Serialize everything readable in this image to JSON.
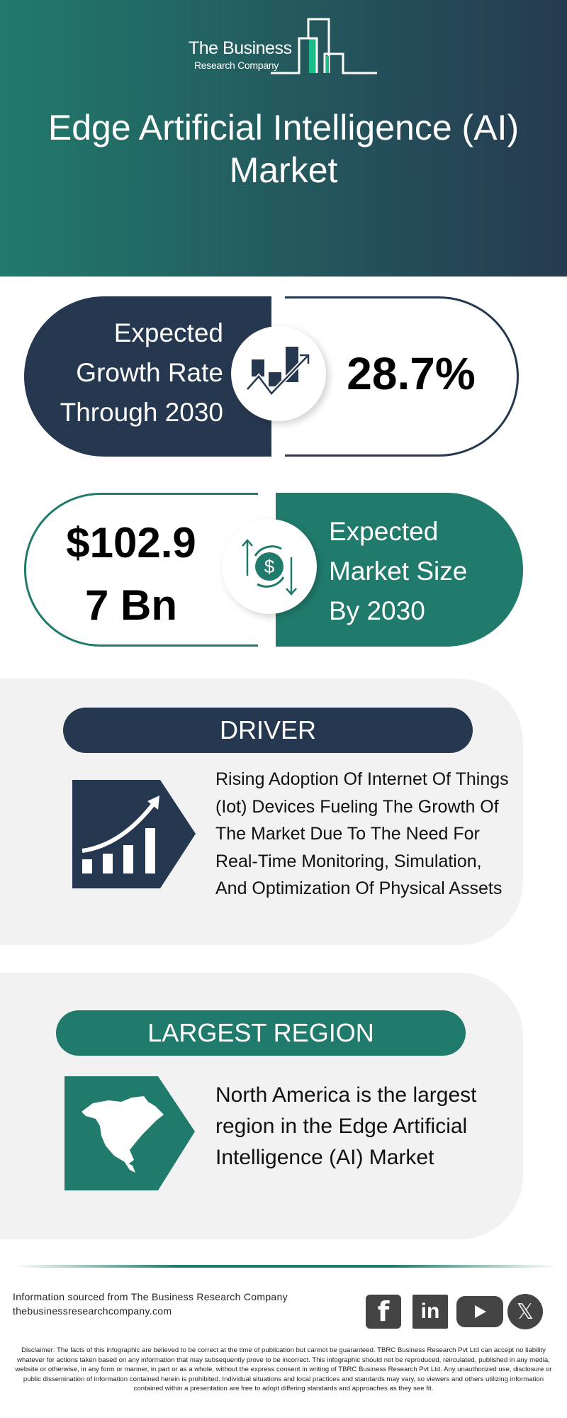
{
  "header": {
    "logo_line1": "The Business",
    "logo_line2": "Research Company",
    "title": "Edge Artificial Intelligence (AI) Market"
  },
  "growth": {
    "label": [
      "Expected",
      "Growth Rate",
      "Through 2030"
    ],
    "value": "28.7%",
    "icon": "growth-chart-icon"
  },
  "market_size": {
    "value": [
      "$102.9",
      "7 Bn"
    ],
    "label": [
      "Expected",
      "Market Size",
      "By 2030"
    ],
    "icon": "dollar-cycle-icon"
  },
  "driver": {
    "heading": "DRIVER",
    "text": "Rising Adoption Of Internet Of Things (Iot) Devices Fueling The Growth Of The Market Due To The Need For Real-Time Monitoring, Simulation, And Optimization Of Physical Assets",
    "icon": "rising-bar-chart-icon"
  },
  "region": {
    "heading": "LARGEST REGION",
    "text": "North America is the largest region in the Edge Artificial Intelligence (AI) Market",
    "icon": "north-america-map-icon"
  },
  "footer": {
    "source": "Information sourced from The Business Research Company",
    "website": "thebusinessresearchcompany.com",
    "social": [
      "facebook",
      "linkedin",
      "youtube",
      "x"
    ],
    "disclaimer": "Disclaimer: The facts of this infographic are believed to be correct at the time of publication but cannot be guaranteed. TBRC Business Research Pvt Ltd can accept no liability whatever for actions taken based on any information that may subsequently prove to be incorrect. This infographic should not be reproduced, reirculated, published in any media, website or otherwise, in any form or manner, in part or as a whole, without the express consent in writing of TBRC Business Research Pvt Ltd. Any unauthorized use, disclosure or public dissemination of information contained herein is prohibited. Individual situations and local practices and standards may vary, so viewers and others utilizing information contained within a presentation are free to adopt differing standards and approaches as they see fit."
  },
  "colors": {
    "navy": "#263850",
    "teal": "#217b6c",
    "card": "#f2f2f2"
  }
}
